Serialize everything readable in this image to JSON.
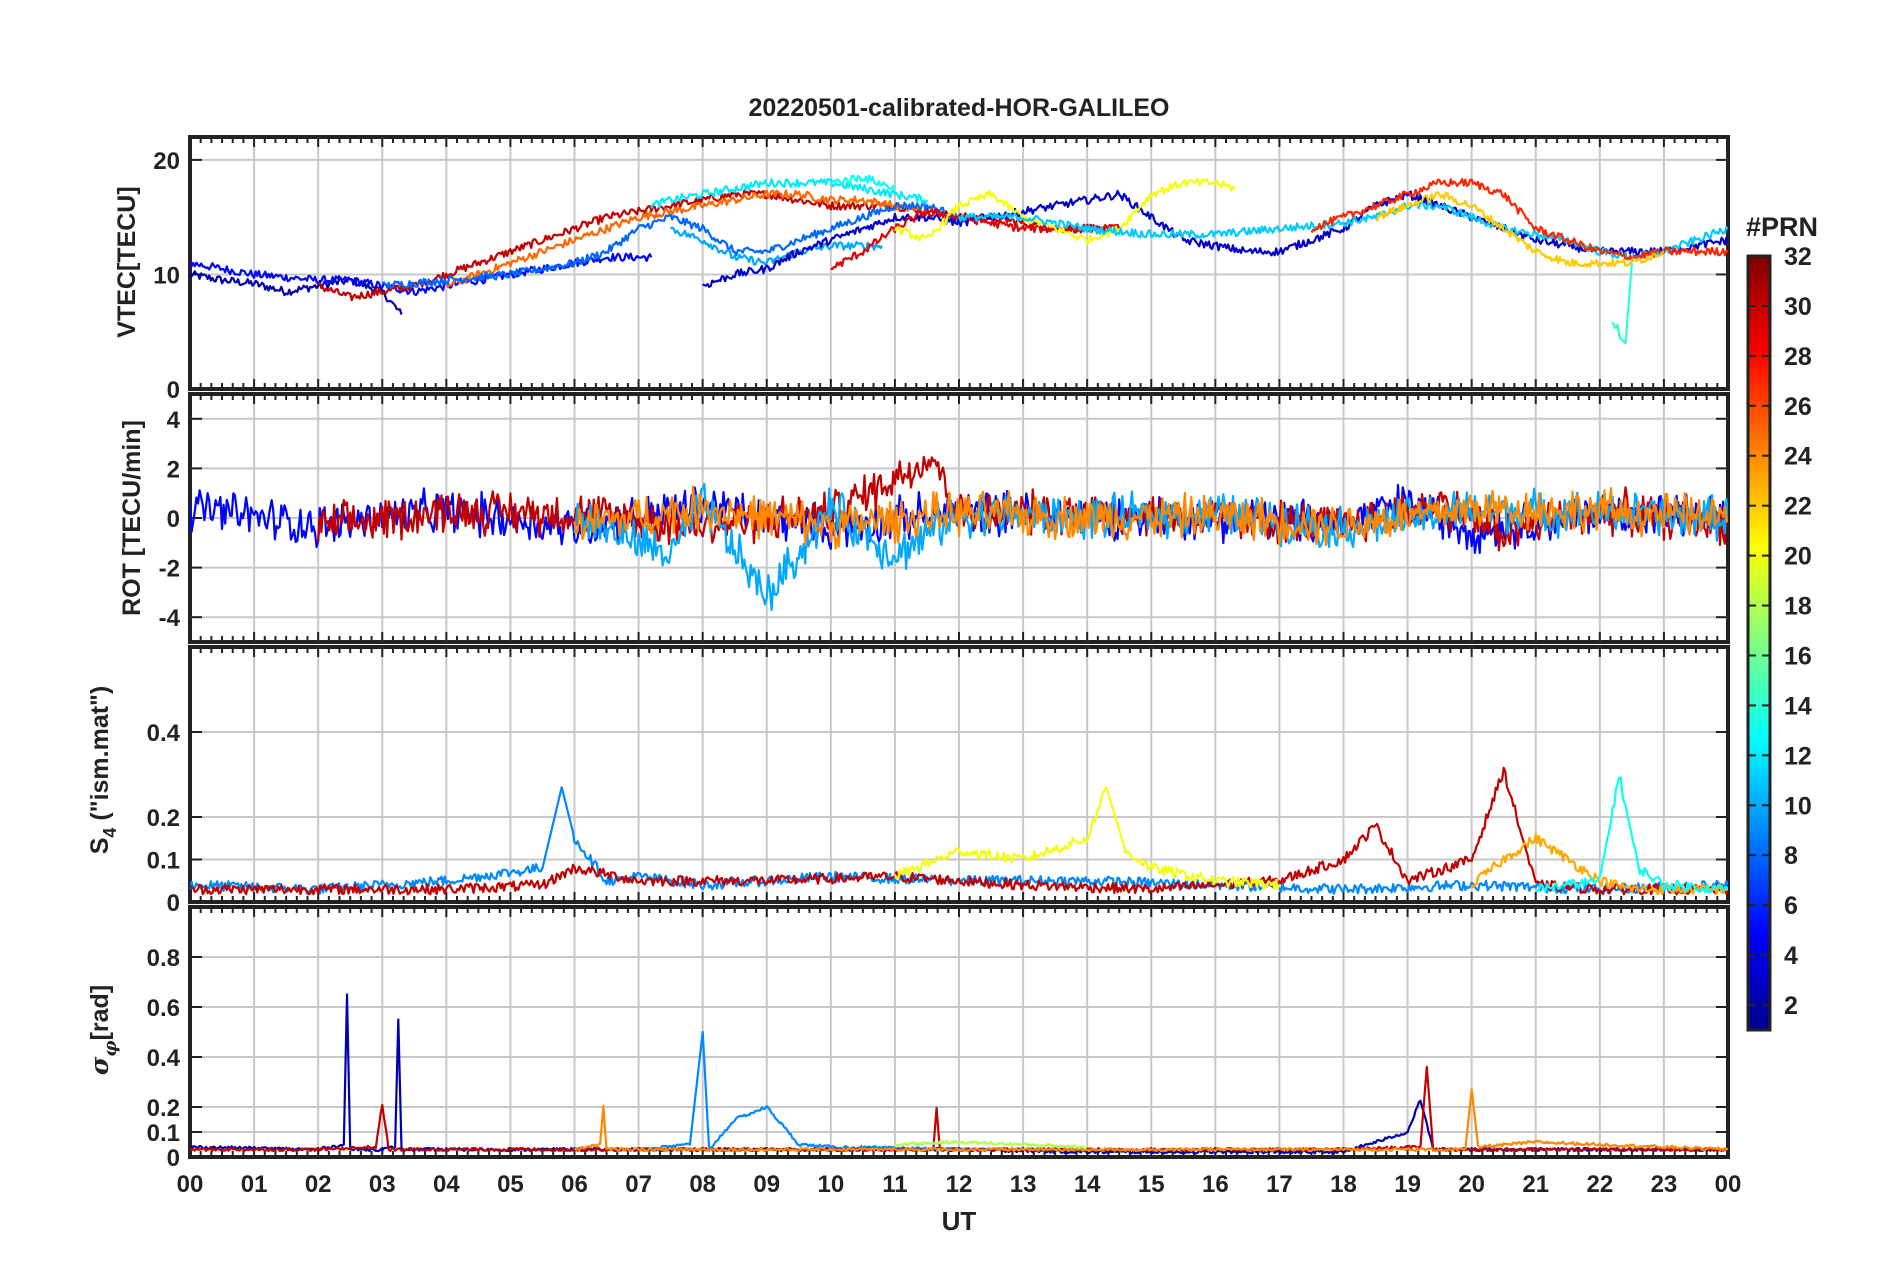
{
  "figure": {
    "title": "20220501-calibrated-HOR-GALILEO",
    "xlabel": "UT",
    "x_ticks": [
      "00",
      "01",
      "02",
      "03",
      "04",
      "05",
      "06",
      "07",
      "08",
      "09",
      "10",
      "11",
      "12",
      "13",
      "14",
      "15",
      "16",
      "17",
      "18",
      "19",
      "20",
      "21",
      "22",
      "23",
      "00"
    ]
  },
  "colorbar": {
    "label": "#PRN",
    "range": [
      1,
      32
    ],
    "ticks": [
      2,
      4,
      6,
      8,
      10,
      12,
      14,
      16,
      18,
      20,
      22,
      24,
      26,
      28,
      30,
      32
    ],
    "colormap": "jet",
    "colors": [
      "#00008f",
      "#0000ff",
      "#0080ff",
      "#00ffff",
      "#80ff80",
      "#ffff00",
      "#ff8000",
      "#ff0000",
      "#800000"
    ]
  },
  "chart_data": [
    {
      "type": "line",
      "panel": "vtec",
      "ylabel": "VTEC[TECU]",
      "xlim": [
        0,
        24
      ],
      "ylim": [
        0,
        22
      ],
      "y_ticks": [
        0,
        10,
        20
      ],
      "grid": true,
      "series": [
        {
          "prn": 2,
          "x": [
            0,
            0.5,
            1,
            1.5,
            2,
            2.5,
            3,
            3.3
          ],
          "y": [
            10,
            9.5,
            9.2,
            8.5,
            9,
            9.5,
            8.5,
            6.5
          ]
        },
        {
          "prn": 5,
          "x": [
            0,
            1,
            2,
            2.5,
            3,
            3.5,
            4,
            4.5,
            5,
            5.5,
            6,
            6.5,
            7,
            7.2
          ],
          "y": [
            11,
            10,
            9.5,
            9.5,
            9,
            8.5,
            9,
            9.5,
            10,
            10.5,
            11,
            11.5,
            11.5,
            11.5
          ]
        },
        {
          "prn": 30,
          "x": [
            2,
            2.5,
            3,
            3.5,
            4,
            4.5,
            5,
            5.5,
            6,
            6.5,
            7,
            7.5,
            8,
            8.5,
            9,
            9.5,
            10,
            10.5,
            11,
            11.5,
            12,
            12.5,
            13,
            13.5,
            14,
            14.5
          ],
          "y": [
            9,
            8,
            8.5,
            9,
            10,
            11,
            12,
            13,
            14,
            15,
            15.5,
            16,
            16.5,
            17,
            17,
            16.5,
            16,
            16,
            16,
            15.5,
            15,
            15,
            14.5,
            14,
            14,
            14
          ]
        },
        {
          "prn": 25,
          "x": [
            4,
            4.5,
            5,
            5.5,
            6,
            6.5,
            7,
            7.5,
            8,
            8.5,
            9,
            9.5,
            10,
            10.5,
            11,
            11.5
          ],
          "y": [
            9,
            10,
            11,
            12,
            13,
            14,
            15,
            15.5,
            16,
            16.5,
            17,
            17,
            16.5,
            16.5,
            16,
            15.5
          ]
        },
        {
          "prn": 8,
          "x": [
            3,
            4,
            5,
            5.5,
            6,
            6.5,
            7,
            7.5,
            8,
            8.5,
            9,
            9.5,
            10,
            10.5,
            11,
            11.5,
            12
          ],
          "y": [
            9,
            9.5,
            10,
            10.5,
            11,
            12,
            14,
            15,
            14,
            12,
            12,
            13,
            14,
            15,
            16,
            16,
            15
          ]
        },
        {
          "prn": 12,
          "x": [
            7.2,
            7.5,
            8,
            8.5,
            9,
            9.5,
            10,
            10.5,
            11,
            11.5
          ],
          "y": [
            16,
            16.5,
            17,
            17.5,
            18,
            18,
            18,
            17.5,
            17,
            16.5
          ]
        },
        {
          "prn": 10,
          "x": [
            7.5,
            8,
            8.5,
            9,
            9.5,
            10,
            10.5,
            10.8
          ],
          "y": [
            14,
            13,
            11.5,
            11,
            12,
            12.5,
            12.5,
            12.5
          ]
        },
        {
          "prn": 3,
          "x": [
            8,
            8.5,
            9,
            9.5,
            10,
            10.5,
            11,
            11.5,
            12,
            12.5,
            13,
            13.5,
            14,
            14.5,
            15,
            15.5,
            16,
            16.5,
            17,
            17.5,
            18,
            18.5,
            19,
            19.5,
            20,
            20.5,
            21,
            21.5,
            22,
            22.5,
            23,
            23.5,
            24
          ],
          "y": [
            9,
            10,
            10.5,
            12,
            13,
            14,
            15,
            15,
            14.5,
            15,
            15.5,
            16,
            16.5,
            17,
            15,
            13,
            12.5,
            12,
            12,
            13,
            14,
            16,
            17,
            16,
            15,
            14,
            13,
            12.5,
            12,
            12,
            12,
            12.5,
            13
          ]
        },
        {
          "prn": 29,
          "x": [
            10,
            10.5,
            11,
            11.5,
            12,
            12.5,
            13,
            13.5,
            14,
            14.5
          ],
          "y": [
            10.5,
            12,
            14,
            15.5,
            15,
            14.5,
            14,
            14,
            14,
            14
          ]
        },
        {
          "prn": 20,
          "x": [
            11,
            11.5,
            12,
            12.5,
            13,
            13.5,
            14,
            14.5,
            15,
            15.5,
            16,
            16.3
          ],
          "y": [
            14,
            13,
            16,
            17,
            15,
            14,
            13,
            14,
            17,
            18,
            18,
            17.5
          ]
        },
        {
          "prn": 13,
          "x": [
            10,
            10.5,
            11
          ],
          "y": [
            18,
            18.5,
            17.5
          ]
        },
        {
          "prn": 11,
          "x": [
            12,
            13,
            14,
            15,
            16,
            17,
            18,
            18.5,
            19,
            19.5,
            20,
            20.5,
            21,
            21.5,
            22,
            22.5,
            23,
            23.5,
            24
          ],
          "y": [
            15,
            15,
            14,
            13.5,
            13.5,
            14,
            14.5,
            15,
            16,
            16,
            15,
            14,
            13.5,
            13,
            12,
            11.5,
            12,
            13,
            14
          ]
        },
        {
          "prn": 27,
          "x": [
            17.5,
            18,
            18.5,
            19,
            19.5,
            20,
            20.5,
            21,
            21.5,
            22,
            22.5,
            23,
            23.5,
            24
          ],
          "y": [
            14,
            15,
            16,
            17,
            18,
            18,
            17,
            14,
            13,
            12,
            11.5,
            12,
            12,
            12
          ]
        },
        {
          "prn": 22,
          "x": [
            18.5,
            19,
            19.5,
            20,
            20.5,
            21,
            21.5,
            22,
            22.5,
            23
          ],
          "y": [
            15,
            16,
            17,
            16,
            14,
            12,
            11,
            11,
            11,
            12
          ]
        },
        {
          "prn": 14,
          "x": [
            22.2,
            22.4,
            22.5
          ],
          "y": [
            6,
            4,
            11
          ]
        }
      ]
    },
    {
      "type": "line",
      "panel": "rot",
      "ylabel": "ROT [TECU/min]",
      "xlim": [
        0,
        24
      ],
      "ylim": [
        -5,
        5
      ],
      "y_ticks": [
        -4,
        -2,
        0,
        2,
        4
      ],
      "grid": true,
      "series": [
        {
          "prn": 5,
          "x": [
            0,
            2,
            4,
            6,
            8,
            10,
            12,
            14,
            16,
            18,
            19,
            20,
            22,
            24
          ],
          "y": [
            0.4,
            -0.3,
            0.3,
            -0.4,
            0.5,
            -0.4,
            0.3,
            0.1,
            0,
            -0.2,
            0.6,
            -0.5,
            0.2,
            0
          ]
        },
        {
          "prn": 30,
          "x": [
            2,
            4,
            6,
            8,
            10,
            11.6,
            12,
            14,
            18,
            19.5,
            20.5,
            22,
            24
          ],
          "y": [
            -0.4,
            0.3,
            0.2,
            -0.3,
            0.2,
            2.5,
            0.1,
            0.3,
            -0.3,
            0.6,
            -0.6,
            0.3,
            -0.2
          ]
        },
        {
          "prn": 10,
          "x": [
            6,
            7.5,
            8,
            9,
            10,
            11,
            12,
            14,
            16,
            18,
            20,
            22,
            24
          ],
          "y": [
            0.1,
            -1.5,
            0.6,
            -3.2,
            0.4,
            -1.5,
            0.2,
            0,
            0.2,
            -0.4,
            0.3,
            0.2,
            0
          ]
        },
        {
          "prn": 24,
          "x": [
            6,
            8,
            10,
            12,
            14,
            16,
            18,
            20,
            22,
            24
          ],
          "y": [
            -0.3,
            0.4,
            -0.3,
            0.2,
            0,
            0.1,
            -0.3,
            0.4,
            0.3,
            0
          ]
        }
      ]
    },
    {
      "type": "line",
      "panel": "s4",
      "ylabel": "S4 (\"ism.mat\")",
      "xlim": [
        0,
        24
      ],
      "ylim": [
        0,
        0.6
      ],
      "y_ticks": [
        0,
        0.1,
        0.2,
        0.4
      ],
      "grid": true,
      "series": [
        {
          "prn": 9,
          "x": [
            0,
            2,
            4,
            5.5,
            5.8,
            6,
            6.5,
            7,
            8,
            9,
            10,
            12,
            14,
            16,
            18,
            20,
            22,
            24
          ],
          "y": [
            0.04,
            0.03,
            0.05,
            0.08,
            0.27,
            0.15,
            0.05,
            0.06,
            0.04,
            0.05,
            0.06,
            0.05,
            0.05,
            0.04,
            0.03,
            0.04,
            0.03,
            0.04
          ]
        },
        {
          "prn": 30,
          "x": [
            0,
            4,
            5.5,
            6,
            7,
            9,
            11,
            13,
            15,
            17,
            18,
            18.5,
            19,
            20,
            20.5,
            21,
            22,
            24
          ],
          "y": [
            0.03,
            0.03,
            0.04,
            0.08,
            0.05,
            0.05,
            0.06,
            0.04,
            0.03,
            0.05,
            0.1,
            0.18,
            0.05,
            0.1,
            0.31,
            0.04,
            0.03,
            0.03
          ]
        },
        {
          "prn": 20,
          "x": [
            11,
            12,
            13,
            14,
            14.3,
            14.6,
            15,
            16,
            17
          ],
          "y": [
            0.06,
            0.12,
            0.1,
            0.15,
            0.27,
            0.12,
            0.08,
            0.05,
            0.04
          ]
        },
        {
          "prn": 23,
          "x": [
            20,
            20.5,
            21,
            21.5,
            22,
            22.5,
            24
          ],
          "y": [
            0.04,
            0.1,
            0.15,
            0.1,
            0.05,
            0.03,
            0.03
          ]
        },
        {
          "prn": 13,
          "x": [
            21,
            22,
            22.3,
            22.6,
            23,
            24
          ],
          "y": [
            0.03,
            0.05,
            0.3,
            0.08,
            0.04,
            0.03
          ]
        }
      ]
    },
    {
      "type": "line",
      "panel": "sigma_phi",
      "ylabel": "σφ [rad]",
      "xlim": [
        0,
        24
      ],
      "ylim": [
        0,
        1
      ],
      "y_ticks": [
        0,
        0.1,
        0.2,
        0.4,
        0.6,
        0.8
      ],
      "grid": true,
      "series": [
        {
          "prn": 2,
          "x": [
            0,
            2,
            2.4,
            2.45,
            2.5,
            3,
            3.2,
            3.25,
            3.3,
            4,
            6,
            8,
            10,
            12,
            14,
            16,
            18,
            19,
            19.2,
            19.4,
            24
          ],
          "y": [
            0.04,
            0.03,
            0.05,
            0.65,
            0.03,
            0.03,
            0.04,
            0.55,
            0.03,
            0.03,
            0.03,
            0.03,
            0.03,
            0.03,
            0.02,
            0.02,
            0.02,
            0.1,
            0.23,
            0.03,
            0.03
          ]
        },
        {
          "prn": 9,
          "x": [
            7,
            7.8,
            8,
            8.1,
            8.5,
            9,
            9.5,
            10,
            12,
            14
          ],
          "y": [
            0.03,
            0.05,
            0.5,
            0.03,
            0.15,
            0.2,
            0.05,
            0.04,
            0.03,
            0.03
          ]
        },
        {
          "prn": 30,
          "x": [
            0,
            2,
            2.9,
            3,
            3.1,
            6,
            11.6,
            11.65,
            11.7,
            18,
            19.2,
            19.3,
            19.4,
            20,
            24
          ],
          "y": [
            0.03,
            0.03,
            0.04,
            0.21,
            0.03,
            0.03,
            0.03,
            0.2,
            0.03,
            0.03,
            0.04,
            0.36,
            0.03,
            0.03,
            0.03
          ]
        },
        {
          "prn": 24,
          "x": [
            6,
            6.4,
            6.45,
            6.5,
            19.9,
            20,
            20.1,
            21,
            24
          ],
          "y": [
            0.03,
            0.05,
            0.2,
            0.03,
            0.03,
            0.27,
            0.04,
            0.06,
            0.03
          ]
        },
        {
          "prn": 18,
          "x": [
            11,
            12,
            13,
            14
          ],
          "y": [
            0.05,
            0.06,
            0.05,
            0.04
          ]
        }
      ]
    }
  ]
}
